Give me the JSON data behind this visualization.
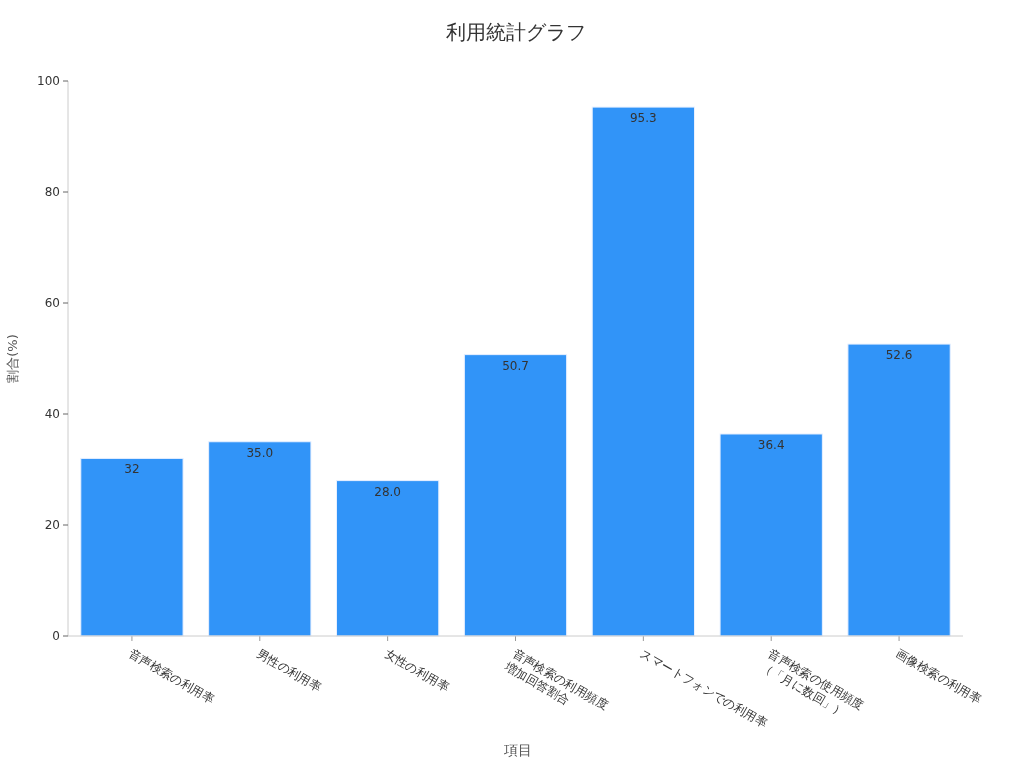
{
  "chart_data": {
    "type": "bar",
    "title": "利用統計グラフ",
    "xlabel": "項目",
    "ylabel": "割合(%)",
    "categories": [
      "音声検索の利用率",
      "男性の利用率",
      "女性の利用率",
      "音声検索の利用頻度\n増加回答割合",
      "スマートフォンでの利用率",
      "音声検索の使用頻度\n（「月に数回」）",
      "画像検索の利用率"
    ],
    "values": [
      32,
      35.0,
      28.0,
      50.7,
      95.3,
      36.4,
      52.6
    ],
    "value_labels": [
      "32",
      "35.0",
      "28.0",
      "50.7",
      "95.3",
      "36.4",
      "52.6"
    ],
    "color": "#3194f8",
    "ylim": [
      0,
      100
    ],
    "yticks": [
      0,
      20,
      40,
      60,
      80,
      100
    ]
  }
}
